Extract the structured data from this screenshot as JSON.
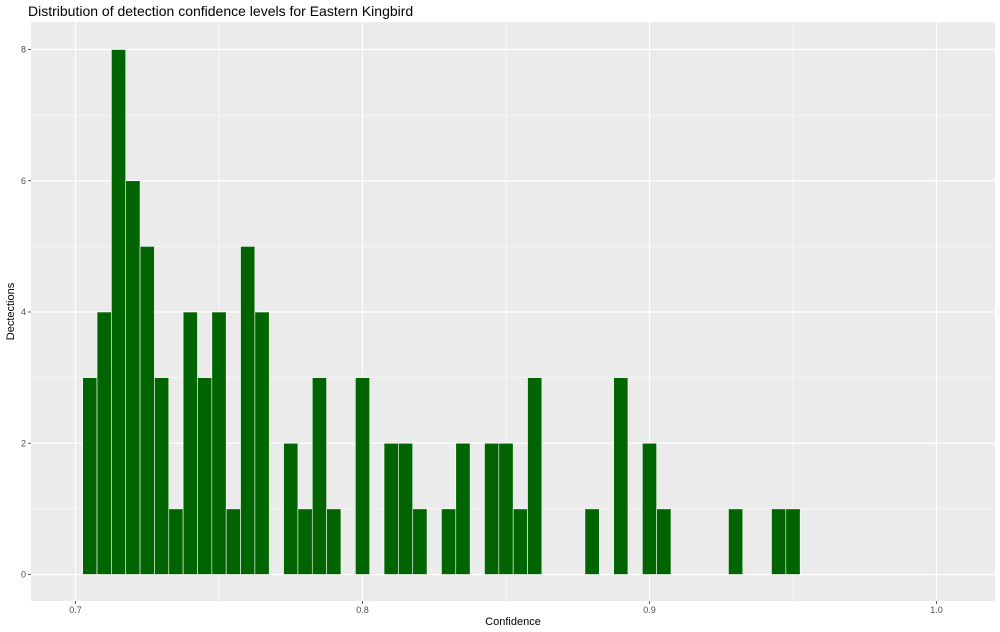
{
  "chart_data": {
    "type": "bar",
    "title": "Distribution of detection confidence levels for Eastern Kingbird",
    "xlabel": "Confidence",
    "ylabel": "Dectections",
    "xlim": [
      0.68,
      1.02
    ],
    "ylim": [
      0,
      8.5
    ],
    "x_ticks": [
      "0.7",
      "0.8",
      "0.9",
      "1.0"
    ],
    "y_ticks": [
      "0",
      "2",
      "4",
      "6",
      "8"
    ],
    "bin_width": 0.005,
    "grid": true,
    "bar_color": "#006400",
    "panel_color": "#ebebeb",
    "grid_color": "#ffffff",
    "bins": [
      {
        "x": 0.705,
        "count": 3
      },
      {
        "x": 0.71,
        "count": 4
      },
      {
        "x": 0.715,
        "count": 8
      },
      {
        "x": 0.72,
        "count": 6
      },
      {
        "x": 0.725,
        "count": 5
      },
      {
        "x": 0.73,
        "count": 3
      },
      {
        "x": 0.735,
        "count": 1
      },
      {
        "x": 0.74,
        "count": 4
      },
      {
        "x": 0.745,
        "count": 3
      },
      {
        "x": 0.75,
        "count": 4
      },
      {
        "x": 0.755,
        "count": 1
      },
      {
        "x": 0.76,
        "count": 5
      },
      {
        "x": 0.765,
        "count": 4
      },
      {
        "x": 0.775,
        "count": 2
      },
      {
        "x": 0.78,
        "count": 1
      },
      {
        "x": 0.785,
        "count": 3
      },
      {
        "x": 0.79,
        "count": 1
      },
      {
        "x": 0.8,
        "count": 3
      },
      {
        "x": 0.81,
        "count": 2
      },
      {
        "x": 0.815,
        "count": 2
      },
      {
        "x": 0.82,
        "count": 1
      },
      {
        "x": 0.83,
        "count": 1
      },
      {
        "x": 0.835,
        "count": 2
      },
      {
        "x": 0.845,
        "count": 2
      },
      {
        "x": 0.85,
        "count": 2
      },
      {
        "x": 0.855,
        "count": 1
      },
      {
        "x": 0.86,
        "count": 3
      },
      {
        "x": 0.88,
        "count": 1
      },
      {
        "x": 0.89,
        "count": 3
      },
      {
        "x": 0.9,
        "count": 2
      },
      {
        "x": 0.905,
        "count": 1
      },
      {
        "x": 0.93,
        "count": 1
      },
      {
        "x": 0.945,
        "count": 1
      },
      {
        "x": 0.95,
        "count": 1
      }
    ]
  }
}
